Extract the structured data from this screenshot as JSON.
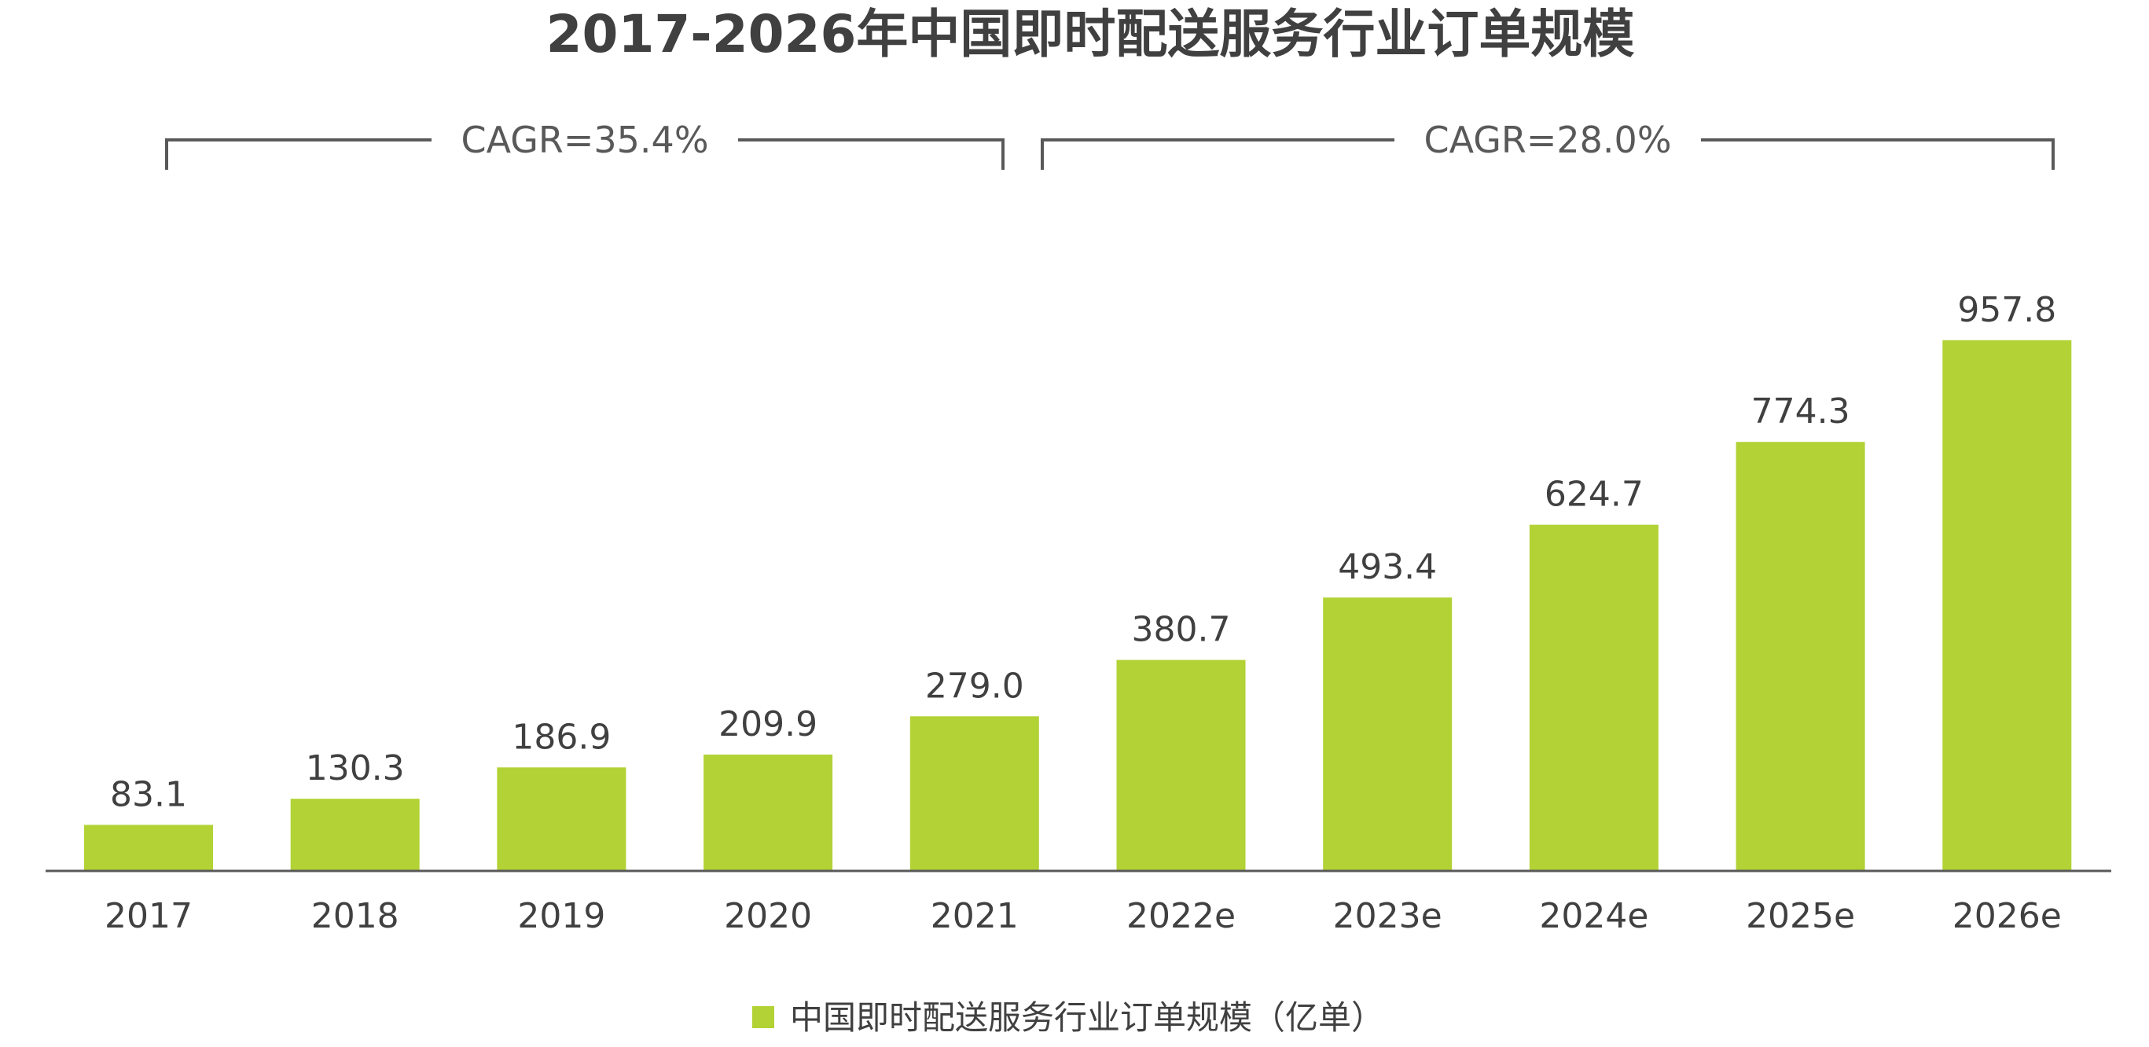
{
  "chart_data": {
    "type": "bar",
    "title": "2017-2026年中国即时配送服务行业订单规模",
    "categories": [
      "2017",
      "2018",
      "2019",
      "2020",
      "2021",
      "2022e",
      "2023e",
      "2024e",
      "2025e",
      "2026e"
    ],
    "series": [
      {
        "name": "中国即时配送服务行业订单规模（亿单）",
        "values": [
          83.1,
          130.3,
          186.9,
          209.9,
          279.0,
          380.7,
          493.4,
          624.7,
          774.3,
          957.8
        ],
        "value_labels": [
          "83.1",
          "130.3",
          "186.9",
          "209.9",
          "279.0",
          "380.7",
          "493.4",
          "624.7",
          "774.3",
          "957.8"
        ]
      }
    ],
    "annotations": [
      {
        "text": "CAGR=35.4%",
        "from": "2017",
        "to": "2021"
      },
      {
        "text": "CAGR=28.0%",
        "from": "2022e",
        "to": "2026e"
      }
    ],
    "xlabel": "",
    "ylabel": "",
    "ylim": [
      0,
      1000
    ],
    "grid": false,
    "legend": "bottom",
    "colors": {
      "bar": "#b2d235",
      "axis": "#595959",
      "text": "#404040",
      "bracket": "#595959"
    }
  }
}
